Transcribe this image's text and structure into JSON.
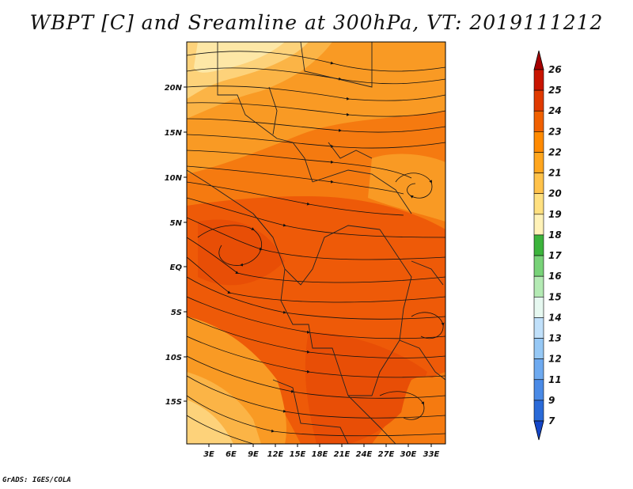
{
  "title": "WBPT [C] and Sreamline at 300hPa, VT: 2019111212",
  "footer": "GrADS: IGES/COLA",
  "lat_labels": [
    "20N",
    "15N",
    "10N",
    "5N",
    "EQ",
    "5S",
    "10S",
    "15S"
  ],
  "lon_labels": [
    "3E",
    "6E",
    "9E",
    "12E",
    "15E",
    "18E",
    "21E",
    "24E",
    "27E",
    "30E",
    "33E"
  ],
  "colorbar": {
    "levels": [
      "26",
      "25",
      "24",
      "23",
      "22",
      "21",
      "20",
      "19",
      "18",
      "17",
      "16",
      "15",
      "14",
      "13",
      "12",
      "11",
      "9",
      "7"
    ],
    "colors": [
      "#a50000",
      "#c81400",
      "#e03a00",
      "#f06000",
      "#ff8a00",
      "#ffa61e",
      "#ffc24a",
      "#ffe080",
      "#fff2b8",
      "#3cb43c",
      "#78d278",
      "#b4eab4",
      "#e6f8f0",
      "#c0e0fa",
      "#96c8f5",
      "#6eaaf0",
      "#4a8ae6",
      "#2a6ad8",
      "#1446c8"
    ]
  },
  "map_colors": {
    "field_23": "#ee5a08",
    "field_22": "#f57a10",
    "field_21": "#f99a24",
    "field_20": "#fbb446",
    "field_19": "#fdd27a",
    "field_18": "#fde7a6"
  }
}
